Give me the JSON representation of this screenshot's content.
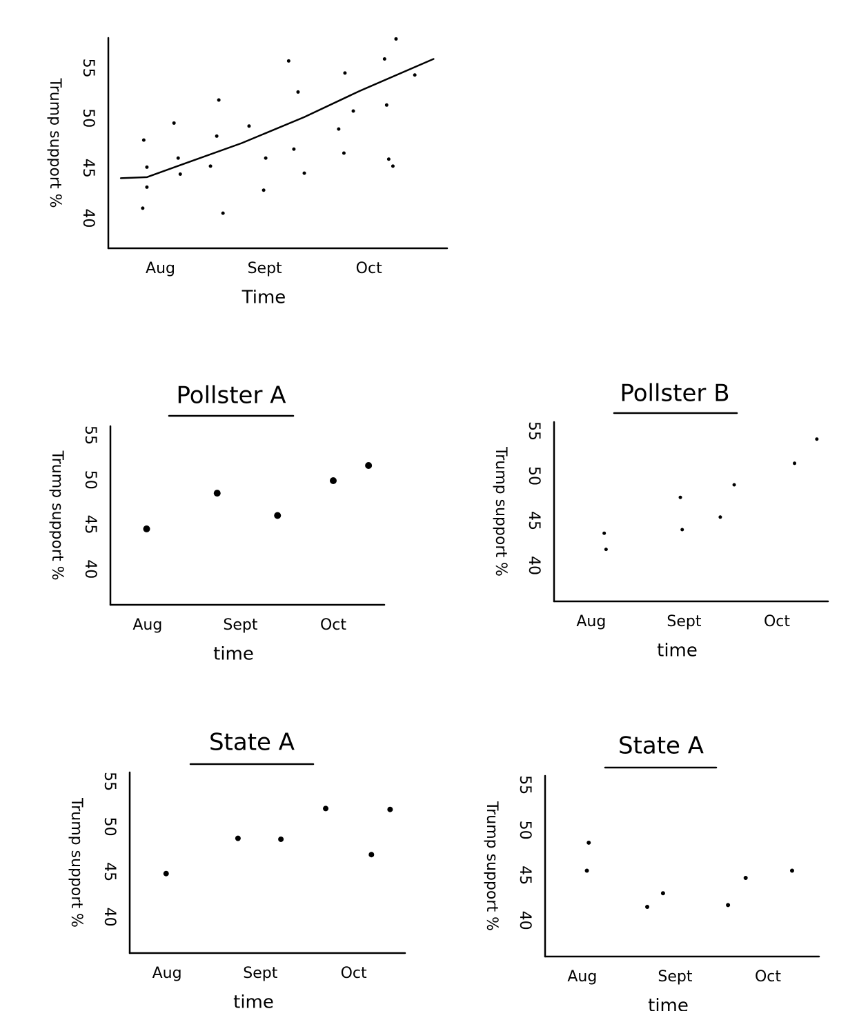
{
  "chart_data": [
    {
      "type": "scatter",
      "xlabel": "Time",
      "ylabel": "Trump support %",
      "color": "#000000",
      "x": [
        -0.17,
        -0.16,
        -0.13,
        -0.13,
        0.13,
        0.17,
        0.19,
        0.48,
        0.56,
        0.54,
        0.6,
        0.85,
        1.01,
        0.99,
        1.23,
        1.28,
        1.32,
        1.38,
        1.71,
        1.76,
        1.77,
        1.85,
        2.17,
        2.19,
        2.23,
        2.26,
        2.15,
        2.44
      ],
      "values": [
        41.0,
        47.8,
        45.1,
        43.1,
        49.5,
        46.0,
        44.4,
        45.2,
        51.8,
        48.2,
        40.5,
        49.2,
        46.0,
        42.8,
        55.7,
        46.9,
        52.6,
        44.5,
        48.9,
        46.5,
        54.5,
        50.7,
        51.3,
        45.9,
        45.2,
        57.9,
        55.9,
        54.3
      ],
      "trend": {
        "x": [
          -0.38,
          -0.13,
          0.19,
          0.78,
          1.38,
          1.91,
          2.62
        ],
        "values": [
          44.0,
          44.1,
          45.3,
          47.5,
          50.1,
          52.7,
          55.9
        ]
      },
      "xlim": [
        -0.5,
        2.75
      ],
      "ylim": [
        37,
        58
      ],
      "xticks": [
        {
          "value": 0,
          "label": "Aug"
        },
        {
          "value": 1,
          "label": "Sept"
        },
        {
          "value": 2,
          "label": "Oct"
        }
      ],
      "yticks": [
        40,
        45,
        50,
        55
      ]
    },
    {
      "type": "scatter",
      "title": "Pollster A",
      "xlabel": "time",
      "ylabel": "Trump support %",
      "color": "#000000",
      "x": [
        -0.01,
        0.75,
        1.4,
        2.0,
        2.38
      ],
      "values": [
        44.5,
        48.5,
        46.0,
        49.9,
        51.6
      ],
      "xlim": [
        -0.4,
        2.55
      ],
      "ylim": [
        36,
        56
      ],
      "xticks": [
        {
          "value": 0,
          "label": "Aug"
        },
        {
          "value": 1,
          "label": "Sept"
        },
        {
          "value": 2,
          "label": "Oct"
        }
      ],
      "yticks": [
        40,
        45,
        50,
        55
      ]
    },
    {
      "type": "scatter",
      "title": "Pollster B",
      "xlabel": "time",
      "ylabel": "Trump support %",
      "color": "#000000",
      "x": [
        0.14,
        0.16,
        0.96,
        0.98,
        1.39,
        1.54,
        2.19,
        2.43
      ],
      "values": [
        43.6,
        41.8,
        47.6,
        44.0,
        45.4,
        49.0,
        51.4,
        54.1
      ],
      "xlim": [
        -0.4,
        2.55
      ],
      "ylim": [
        36,
        56
      ],
      "xticks": [
        {
          "value": 0,
          "label": "Aug"
        },
        {
          "value": 1,
          "label": "Sept"
        },
        {
          "value": 2,
          "label": "Oct"
        }
      ],
      "yticks": [
        40,
        45,
        50,
        55
      ]
    },
    {
      "type": "scatter",
      "title": "State A",
      "xlabel": "time",
      "ylabel": "Trump support %",
      "color": "#000000",
      "x": [
        -0.01,
        0.76,
        1.22,
        1.7,
        2.19,
        2.39
      ],
      "values": [
        44.8,
        48.7,
        48.6,
        52.0,
        46.9,
        51.9
      ],
      "xlim": [
        -0.4,
        2.55
      ],
      "ylim": [
        36,
        56
      ],
      "xticks": [
        {
          "value": 0,
          "label": "Aug"
        },
        {
          "value": 1,
          "label": "Sept"
        },
        {
          "value": 2,
          "label": "Oct"
        }
      ],
      "yticks": [
        40,
        45,
        50,
        55
      ]
    },
    {
      "type": "scatter",
      "title": "State A",
      "xlabel": "time",
      "ylabel": "Trump support %",
      "color": "#000000",
      "x": [
        0.07,
        0.05,
        0.7,
        0.87,
        1.57,
        1.76,
        2.26
      ],
      "values": [
        48.6,
        45.5,
        41.5,
        43.0,
        41.7,
        44.7,
        45.5
      ],
      "xlim": [
        -0.4,
        2.55
      ],
      "ylim": [
        36,
        56
      ],
      "xticks": [
        {
          "value": 0,
          "label": "Aug"
        },
        {
          "value": 1,
          "label": "Sept"
        },
        {
          "value": 2,
          "label": "Oct"
        }
      ],
      "yticks": [
        40,
        45,
        50,
        55
      ]
    }
  ]
}
